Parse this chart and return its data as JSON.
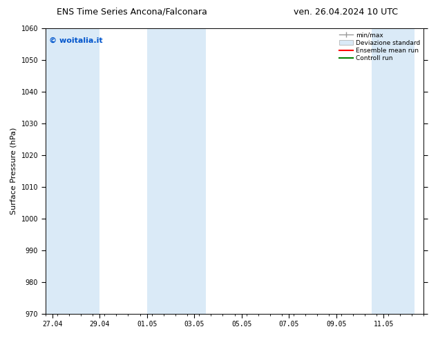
{
  "title_left": "ENS Time Series Ancona/Falconara",
  "title_right": "ven. 26.04.2024 10 UTC",
  "ylabel": "Surface Pressure (hPa)",
  "ylim": [
    970,
    1060
  ],
  "yticks": [
    970,
    980,
    990,
    1000,
    1010,
    1020,
    1030,
    1040,
    1050,
    1060
  ],
  "xlabel_dates": [
    "27.04",
    "29.04",
    "01.05",
    "03.05",
    "05.05",
    "07.05",
    "09.05",
    "11.05"
  ],
  "x_positions": [
    0,
    2,
    4,
    6,
    8,
    10,
    12,
    14
  ],
  "x_min": -0.3,
  "x_max": 15.3,
  "watermark": "© woitalia.it",
  "watermark_color": "#0055cc",
  "bg_color": "#ffffff",
  "plot_bg_color": "#ffffff",
  "shaded_bands": [
    {
      "xstart": -0.3,
      "xend": 2.0,
      "color": "#daeaf7"
    },
    {
      "xstart": 4.0,
      "xend": 6.5,
      "color": "#daeaf7"
    },
    {
      "xstart": 13.5,
      "xend": 15.3,
      "color": "#daeaf7"
    }
  ],
  "legend_items": [
    {
      "label": "min/max",
      "color": "#999999",
      "style": "errorbar"
    },
    {
      "label": "Deviazione standard",
      "color": "#daeaf7",
      "style": "box"
    },
    {
      "label": "Ensemble mean run",
      "color": "#ff0000",
      "style": "line"
    },
    {
      "label": "Controll run",
      "color": "#008000",
      "style": "line"
    }
  ],
  "title_fontsize": 9,
  "axis_fontsize": 8,
  "tick_fontsize": 7,
  "watermark_fontsize": 8
}
